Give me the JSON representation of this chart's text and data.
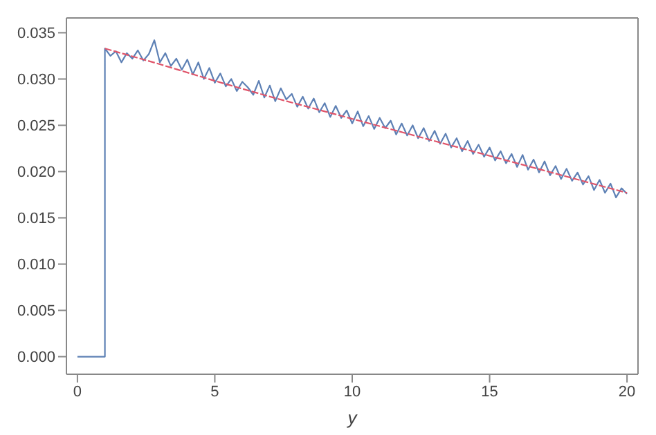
{
  "chart_data": {
    "type": "line",
    "xlabel": "y",
    "xlim": [
      -0.4,
      20.4
    ],
    "ylim": [
      -0.0019,
      0.0366
    ],
    "xticks": [
      0,
      5,
      10,
      15,
      20
    ],
    "yticks": [
      {
        "value": 0,
        "label": "0.000"
      },
      {
        "value": 0.005,
        "label": "0.005"
      },
      {
        "value": 0.01,
        "label": "0.010"
      },
      {
        "value": 0.015,
        "label": "0.015"
      },
      {
        "value": 0.02,
        "label": "0.020"
      },
      {
        "value": 0.025,
        "label": "0.025"
      },
      {
        "value": 0.03,
        "label": "0.030"
      },
      {
        "value": 0.035,
        "label": "0.035"
      }
    ],
    "legend": false,
    "marker": "none",
    "series": [
      {
        "color": "#e0556a",
        "line_style": "dashed",
        "x": [
          1,
          3,
          5,
          7,
          9,
          11,
          13,
          15,
          17,
          19,
          20
        ],
        "values": [
          0.0333,
          0.0316,
          0.0298,
          0.0281,
          0.0265,
          0.0249,
          0.0233,
          0.0217,
          0.0201,
          0.0185,
          0.0177
        ]
      },
      {
        "color": "#5e81b5",
        "line_style": "solid",
        "x": [
          0,
          1,
          1,
          1.2,
          1.4,
          1.6,
          1.8,
          2.0,
          2.2,
          2.4,
          2.6,
          2.8,
          3.0,
          3.2,
          3.4,
          3.6,
          3.8,
          4.0,
          4.2,
          4.4,
          4.6,
          4.8,
          5.0,
          5.2,
          5.4,
          5.6,
          5.8,
          6.0,
          6.2,
          6.4,
          6.6,
          6.8,
          7.0,
          7.2,
          7.4,
          7.6,
          7.8,
          8.0,
          8.2,
          8.4,
          8.6,
          8.8,
          9.0,
          9.2,
          9.4,
          9.6,
          9.8,
          10.0,
          10.2,
          10.4,
          10.6,
          10.8,
          11.0,
          11.2,
          11.4,
          11.6,
          11.8,
          12.0,
          12.2,
          12.4,
          12.6,
          12.8,
          13.0,
          13.2,
          13.4,
          13.6,
          13.8,
          14.0,
          14.2,
          14.4,
          14.6,
          14.8,
          15.0,
          15.2,
          15.4,
          15.6,
          15.8,
          16.0,
          16.2,
          16.4,
          16.6,
          16.8,
          17.0,
          17.2,
          17.4,
          17.6,
          17.8,
          18.0,
          18.2,
          18.4,
          18.6,
          18.8,
          19.0,
          19.2,
          19.4,
          19.6,
          19.8,
          20.0
        ],
        "values": [
          0,
          0,
          0.0333,
          0.0325,
          0.033,
          0.0318,
          0.0328,
          0.0322,
          0.0331,
          0.032,
          0.0327,
          0.0342,
          0.0318,
          0.0328,
          0.0314,
          0.0322,
          0.031,
          0.0321,
          0.0305,
          0.0318,
          0.03,
          0.0312,
          0.0296,
          0.0306,
          0.0292,
          0.03,
          0.0287,
          0.0297,
          0.0291,
          0.0283,
          0.0298,
          0.028,
          0.0293,
          0.0276,
          0.029,
          0.0278,
          0.0284,
          0.027,
          0.0281,
          0.0268,
          0.0279,
          0.0264,
          0.0274,
          0.0259,
          0.0271,
          0.0258,
          0.0266,
          0.0252,
          0.0265,
          0.0249,
          0.026,
          0.0246,
          0.0258,
          0.0247,
          0.0255,
          0.024,
          0.0252,
          0.0239,
          0.025,
          0.0236,
          0.0247,
          0.0233,
          0.0244,
          0.023,
          0.0241,
          0.0226,
          0.0236,
          0.0222,
          0.0233,
          0.0219,
          0.0229,
          0.0216,
          0.0226,
          0.0212,
          0.0222,
          0.0209,
          0.0219,
          0.0205,
          0.0218,
          0.0202,
          0.0213,
          0.0199,
          0.0211,
          0.0196,
          0.0206,
          0.0192,
          0.0203,
          0.019,
          0.0199,
          0.0186,
          0.0195,
          0.018,
          0.0191,
          0.0177,
          0.0187,
          0.0172,
          0.0182,
          0.0176
        ]
      }
    ]
  }
}
